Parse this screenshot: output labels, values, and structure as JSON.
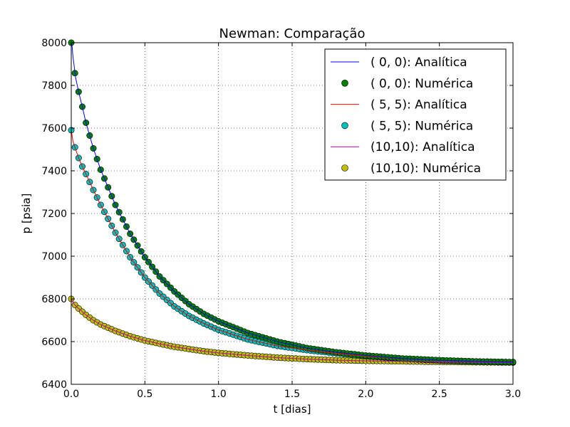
{
  "chart_data": {
    "type": "scatter",
    "title": "Newman: Comparação",
    "xlabel": "t [dias]",
    "ylabel": "p [psia]",
    "xlim": [
      0,
      3.0
    ],
    "ylim": [
      6400,
      8000
    ],
    "xticks": [
      0.0,
      0.5,
      1.0,
      1.5,
      2.0,
      2.5,
      3.0
    ],
    "xtick_labels": [
      "0.0",
      "0.5",
      "1.0",
      "1.5",
      "2.0",
      "2.5",
      "3.0"
    ],
    "yticks": [
      6400,
      6600,
      6800,
      7000,
      7200,
      7400,
      7600,
      7800,
      8000
    ],
    "ytick_labels": [
      "6400",
      "6600",
      "6800",
      "7000",
      "7200",
      "7400",
      "7600",
      "7800",
      "8000"
    ],
    "grid": true,
    "legend_position": "top-right",
    "marker_spacing_t": 0.025,
    "series": [
      {
        "name": "( 0, 0): Analítica",
        "kind": "line",
        "color": "#0000ff",
        "x": [
          0,
          0.005,
          0.01,
          0.02,
          0.03,
          0.05,
          0.075,
          0.1,
          0.15,
          0.2,
          0.3,
          0.4,
          0.5,
          0.6,
          0.7,
          0.8,
          0.9,
          1.0,
          1.2,
          1.4,
          1.6,
          1.8,
          2.0,
          2.25,
          2.5,
          2.75,
          3.0
        ],
        "y": [
          8000,
          7990,
          7945,
          7890,
          7835,
          7770,
          7700,
          7625,
          7505,
          7405,
          7240,
          7105,
          6995,
          6905,
          6835,
          6775,
          6730,
          6695,
          6640,
          6600,
          6570,
          6550,
          6535,
          6521,
          6513,
          6507,
          6504
        ]
      },
      {
        "name": "( 0, 0): Numérica",
        "kind": "markers",
        "color": "#008000",
        "x": [
          0,
          0.01,
          0.02,
          0.03,
          0.05,
          0.075,
          0.1,
          0.15,
          0.2,
          0.3,
          0.4,
          0.5,
          0.6,
          0.7,
          0.8,
          0.9,
          1.0,
          1.2,
          1.4,
          1.6,
          1.8,
          2.0,
          2.25,
          2.5,
          2.75,
          3.0
        ],
        "y": [
          8000,
          7935,
          7885,
          7830,
          7770,
          7700,
          7625,
          7505,
          7405,
          7240,
          7105,
          6995,
          6905,
          6835,
          6775,
          6730,
          6695,
          6640,
          6600,
          6570,
          6550,
          6535,
          6521,
          6513,
          6507,
          6504
        ]
      },
      {
        "name": "( 5, 5): Analítica",
        "kind": "line",
        "color": "#ff0000",
        "x": [
          0,
          0.01,
          0.02,
          0.03,
          0.05,
          0.075,
          0.1,
          0.15,
          0.2,
          0.3,
          0.4,
          0.5,
          0.6,
          0.7,
          0.8,
          0.9,
          1.0,
          1.2,
          1.4,
          1.6,
          1.8,
          2.0,
          2.25,
          2.5,
          2.75,
          3.0
        ],
        "y": [
          7590,
          7545,
          7520,
          7500,
          7460,
          7420,
          7385,
          7310,
          7240,
          7110,
          6995,
          6900,
          6825,
          6765,
          6720,
          6685,
          6655,
          6610,
          6580,
          6560,
          6545,
          6532,
          6520,
          6512,
          6507,
          6504
        ]
      },
      {
        "name": "( 5, 5): Numérica",
        "kind": "markers",
        "color": "#00bfbf",
        "x": [
          0,
          0.01,
          0.02,
          0.03,
          0.05,
          0.075,
          0.1,
          0.15,
          0.2,
          0.3,
          0.4,
          0.5,
          0.6,
          0.7,
          0.8,
          0.9,
          1.0,
          1.2,
          1.4,
          1.6,
          1.8,
          2.0,
          2.25,
          2.5,
          2.75,
          3.0
        ],
        "y": [
          7590,
          7545,
          7520,
          7500,
          7460,
          7420,
          7385,
          7310,
          7240,
          7110,
          6995,
          6900,
          6825,
          6765,
          6720,
          6685,
          6655,
          6610,
          6580,
          6560,
          6545,
          6532,
          6520,
          6512,
          6507,
          6504
        ]
      },
      {
        "name": "(10,10): Analítica",
        "kind": "line",
        "color": "#bf00bf",
        "x": [
          0,
          0.02,
          0.05,
          0.1,
          0.15,
          0.2,
          0.3,
          0.4,
          0.5,
          0.6,
          0.7,
          0.8,
          0.9,
          1.0,
          1.2,
          1.4,
          1.6,
          1.8,
          2.0,
          2.5,
          3.0
        ],
        "y": [
          6800,
          6775,
          6755,
          6725,
          6700,
          6680,
          6650,
          6625,
          6605,
          6590,
          6576,
          6565,
          6555,
          6547,
          6535,
          6525,
          6518,
          6513,
          6510,
          6505,
          6502
        ]
      },
      {
        "name": "(10,10): Numérica",
        "kind": "markers",
        "color": "#bfbf00",
        "x": [
          0,
          0.02,
          0.05,
          0.1,
          0.15,
          0.2,
          0.3,
          0.4,
          0.5,
          0.6,
          0.7,
          0.8,
          0.9,
          1.0,
          1.2,
          1.4,
          1.6,
          1.8,
          2.0,
          2.5,
          3.0
        ],
        "y": [
          6800,
          6775,
          6755,
          6725,
          6700,
          6680,
          6650,
          6625,
          6605,
          6590,
          6576,
          6565,
          6555,
          6547,
          6535,
          6525,
          6518,
          6513,
          6510,
          6505,
          6502
        ]
      }
    ]
  }
}
